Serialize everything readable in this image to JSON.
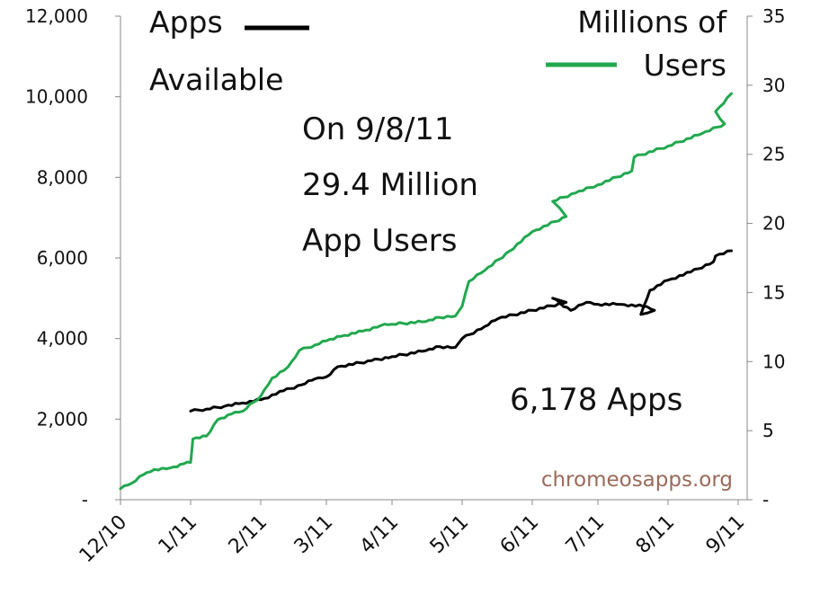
{
  "chart_data": {
    "type": "line",
    "x_axis": {
      "tick_labels": [
        "12/10",
        "1/11",
        "2/11",
        "3/11",
        "4/11",
        "5/11",
        "6/11",
        "7/11",
        "8/11",
        "9/11"
      ]
    },
    "y_left": {
      "range": [
        0,
        12000
      ],
      "tick_values": [
        0,
        2000,
        4000,
        6000,
        8000,
        10000,
        12000
      ],
      "tick_labels": [
        "-",
        "2,000",
        "4,000",
        "6,000",
        "8,000",
        "10,000",
        "12,000"
      ]
    },
    "y_right": {
      "range": [
        0,
        35
      ],
      "tick_values": [
        0,
        5,
        10,
        15,
        20,
        25,
        30,
        35
      ],
      "tick_labels": [
        "-",
        "5",
        "10",
        "15",
        "20",
        "25",
        "30",
        "35"
      ]
    },
    "grid": false,
    "series": [
      {
        "name": "Apps Available",
        "axis": "left",
        "color": "#000000",
        "points": [
          [
            "1/11",
            2200
          ],
          [
            "1/11+7",
            2250
          ],
          [
            "1/11+15",
            2320
          ],
          [
            "2/11-8",
            2400
          ],
          [
            "2/11",
            2480
          ],
          [
            "2/11+10",
            2700
          ],
          [
            "2/11+18",
            2850
          ],
          [
            "3/11-5",
            3000
          ],
          [
            "3/11",
            3050
          ],
          [
            "3/11+5",
            3300
          ],
          [
            "3/11+20",
            3450
          ],
          [
            "4/11",
            3550
          ],
          [
            "4/11+15",
            3700
          ],
          [
            "5/11-10",
            3800
          ],
          [
            "5/11-3",
            3780
          ],
          [
            "5/11",
            4000
          ],
          [
            "5/11+10",
            4300
          ],
          [
            "6/11-15",
            4500
          ],
          [
            "6/11",
            4700
          ],
          [
            "6/11+15",
            4900
          ],
          [
            "7/11-20",
            5000
          ],
          [
            "7/11-12",
            4700
          ],
          [
            "7/11-5",
            4900
          ],
          [
            "7/11",
            4850
          ],
          [
            "7/11+10",
            4850
          ],
          [
            "7/11+20",
            4800
          ],
          [
            "7/11+25",
            4700
          ],
          [
            "8/11-12",
            4600
          ],
          [
            "8/11-8",
            5200
          ],
          [
            "8/11",
            5450
          ],
          [
            "8/11+10",
            5650
          ],
          [
            "8/11+20",
            5900
          ],
          [
            "9/11-10",
            6050
          ],
          [
            "9/11-3",
            6178
          ]
        ]
      },
      {
        "name": "Millions of Users",
        "axis": "right",
        "color": "#21a84e",
        "points": [
          [
            "12/10",
            0.8
          ],
          [
            "12/10+5",
            1.2
          ],
          [
            "12/10+10",
            1.8
          ],
          [
            "12/10+15",
            2.2
          ],
          [
            "12/10+22",
            2.3
          ],
          [
            "1/11-3",
            2.6
          ],
          [
            "1/11",
            2.7
          ],
          [
            "1/11+1",
            4.4
          ],
          [
            "1/11+7",
            4.6
          ],
          [
            "1/11+12",
            5.8
          ],
          [
            "1/11+18",
            6.2
          ],
          [
            "2/11-8",
            6.4
          ],
          [
            "2/11",
            7.5
          ],
          [
            "2/11+5",
            8.8
          ],
          [
            "2/11+12",
            9.6
          ],
          [
            "3/11-12",
            10.8
          ],
          [
            "3/11-5",
            11.2
          ],
          [
            "3/11",
            11.5
          ],
          [
            "3/11+8",
            11.9
          ],
          [
            "3/11+16",
            12.2
          ],
          [
            "4/11-5",
            12.6
          ],
          [
            "4/11",
            12.7
          ],
          [
            "4/11+15",
            12.9
          ],
          [
            "5/11-10",
            13.2
          ],
          [
            "5/11-3",
            13.3
          ],
          [
            "5/11",
            14.0
          ],
          [
            "5/11+3",
            15.8
          ],
          [
            "5/11+10",
            16.6
          ],
          [
            "6/11-10",
            18.0
          ],
          [
            "6/11",
            19.4
          ],
          [
            "6/11+15",
            20.5
          ],
          [
            "7/11-20",
            21.6
          ],
          [
            "7/11-10",
            22.2
          ],
          [
            "7/11",
            22.8
          ],
          [
            "7/11+15",
            23.8
          ],
          [
            "8/11-15",
            24.8
          ],
          [
            "8/11",
            25.6
          ],
          [
            "8/11+15",
            26.5
          ],
          [
            "8/11+25",
            27.2
          ],
          [
            "9/11-10",
            28.1
          ],
          [
            "9/11-3",
            29.4
          ]
        ]
      }
    ],
    "legend": {
      "apps_label_line1": "Apps",
      "apps_label_line2": "Available",
      "users_label_line1": "Millions of",
      "users_label_line2": "Users",
      "placement": "top"
    },
    "annotations": {
      "date_line": "On 9/8/11",
      "users_line1": "29.4 Million",
      "users_line2": "App Users",
      "apps_total": "6,178 Apps",
      "source": "chromeosapps.org"
    }
  }
}
